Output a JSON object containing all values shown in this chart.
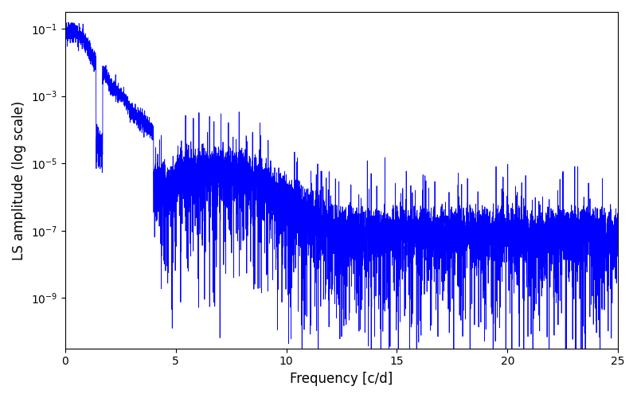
{
  "xlabel": "Frequency [c/d]",
  "ylabel": "LS amplitude (log scale)",
  "xlim": [
    0,
    25
  ],
  "ylim_log": [
    -10.5,
    -0.5
  ],
  "line_color": "#0000FF",
  "line_width": 0.6,
  "background_color": "#ffffff",
  "seed": 123,
  "n_points": 8000,
  "freq_max": 25.0
}
